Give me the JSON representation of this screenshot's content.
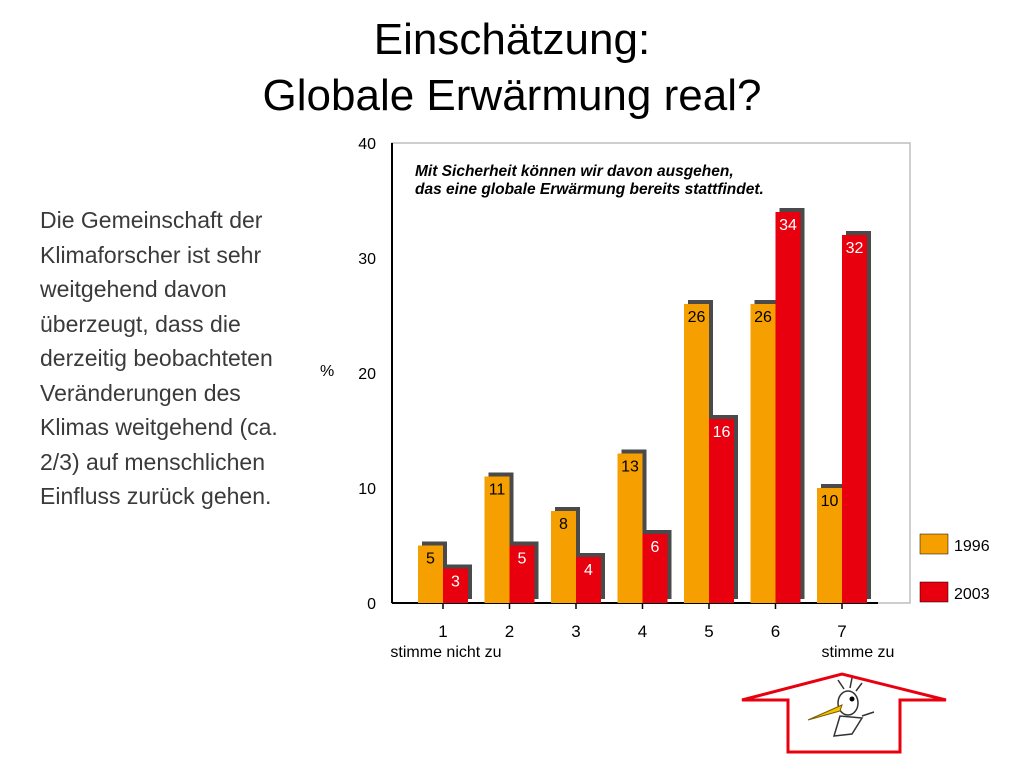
{
  "slide": {
    "title_line1": "Einschätzung:",
    "title_line2": "Globale Erwärmung real?",
    "body_lines": [
      "Die Gemeinschaft der",
      "Klimaforscher ist sehr",
      "weitgehend davon",
      "überzeugt, dass die",
      "derzeitig beobachteten",
      "Veränderungen des",
      "Klimas weitgehend (ca.",
      "2/3) auf menschlichen",
      "Einfluss zurück gehen."
    ]
  },
  "chart_data": {
    "type": "bar",
    "title": "Mit Sicherheit können wir davon ausgehen,\ndas eine globale Erwärmung bereits stattfindet.",
    "categories": [
      "1",
      "2",
      "3",
      "4",
      "5",
      "6",
      "7"
    ],
    "category_sublabels": {
      "1": "stimme nicht zu",
      "7": "stimme zu"
    },
    "ylabel": "%",
    "xlabel": "",
    "ylim": [
      0,
      40
    ],
    "yticks": [
      0,
      10,
      20,
      30,
      40
    ],
    "grid": false,
    "legend_position": "right",
    "series": [
      {
        "name": "1996",
        "color": "#f5a000",
        "values": [
          5,
          11,
          8,
          13,
          26,
          26,
          10
        ]
      },
      {
        "name": "2003",
        "color": "#e8000e",
        "values": [
          3,
          5,
          4,
          6,
          16,
          34,
          32
        ]
      }
    ]
  },
  "decoration": {
    "logo": "bird-logo-icon",
    "arrow_color": "#e8000e"
  }
}
